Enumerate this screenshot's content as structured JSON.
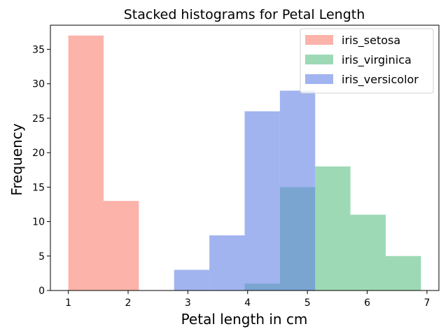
{
  "chart_data": {
    "type": "histogram",
    "title": "Stacked histograms for Petal Length",
    "xlabel": "Petal length in cm",
    "ylabel": "Frequency",
    "xlim": [
      0.7,
      7.2
    ],
    "ylim": [
      0,
      38.5
    ],
    "xticks": [
      1,
      2,
      3,
      4,
      5,
      6,
      7
    ],
    "yticks": [
      0,
      5,
      10,
      15,
      20,
      25,
      30,
      35
    ],
    "bin_edges": [
      1.0,
      1.59,
      2.18,
      2.77,
      3.36,
      3.95,
      4.54,
      5.13,
      5.72,
      6.31,
      6.9
    ],
    "legend_position": "top-right",
    "series": [
      {
        "name": "iris_setosa",
        "color": "#fa8072",
        "alpha": 0.6,
        "values": [
          37,
          13,
          0,
          0,
          0,
          0,
          0,
          0,
          0,
          0
        ]
      },
      {
        "name": "iris_virginica",
        "color": "#5cbf84",
        "alpha": 0.6,
        "values": [
          0,
          0,
          0,
          0,
          0,
          1,
          15,
          18,
          11,
          5
        ]
      },
      {
        "name": "iris_versicolor",
        "color": "#6282e4",
        "alpha": 0.6,
        "values": [
          0,
          0,
          0,
          3,
          8,
          26,
          29,
          0,
          0,
          0
        ]
      }
    ]
  }
}
